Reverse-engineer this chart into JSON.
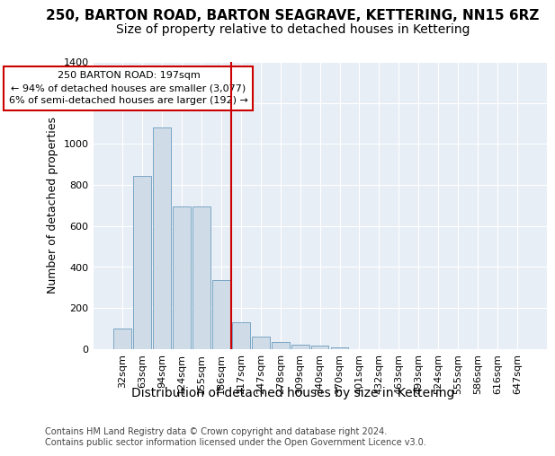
{
  "title": "250, BARTON ROAD, BARTON SEAGRAVE, KETTERING, NN15 6RZ",
  "subtitle": "Size of property relative to detached houses in Kettering",
  "xlabel": "Distribution of detached houses by size in Kettering",
  "ylabel": "Number of detached properties",
  "categories": [
    "32sqm",
    "63sqm",
    "94sqm",
    "124sqm",
    "155sqm",
    "186sqm",
    "217sqm",
    "247sqm",
    "278sqm",
    "309sqm",
    "340sqm",
    "370sqm",
    "401sqm",
    "432sqm",
    "463sqm",
    "493sqm",
    "524sqm",
    "555sqm",
    "586sqm",
    "616sqm",
    "647sqm"
  ],
  "values": [
    100,
    845,
    1080,
    695,
    695,
    335,
    130,
    60,
    35,
    20,
    15,
    10,
    0,
    0,
    0,
    0,
    0,
    0,
    0,
    0,
    0
  ],
  "bar_color": "#cfdce8",
  "bar_edgecolor": "#6a9cbf",
  "vline_color": "#cc0000",
  "vline_index": 5.5,
  "annotation_line1": "250 BARTON ROAD: 197sqm",
  "annotation_line2": "← 94% of detached houses are smaller (3,077)",
  "annotation_line3": "6% of semi-detached houses are larger (192) →",
  "annotation_box_edgecolor": "#cc0000",
  "ylim_max": 1400,
  "yticks": [
    0,
    200,
    400,
    600,
    800,
    1000,
    1200,
    1400
  ],
  "plot_bg_color": "#e8eef5",
  "fig_bg_color": "#ffffff",
  "footer": "Contains HM Land Registry data © Crown copyright and database right 2024.\nContains public sector information licensed under the Open Government Licence v3.0.",
  "title_fontsize": 11,
  "subtitle_fontsize": 10,
  "ylabel_fontsize": 9,
  "xlabel_fontsize": 10,
  "tick_fontsize": 8,
  "footer_fontsize": 7
}
